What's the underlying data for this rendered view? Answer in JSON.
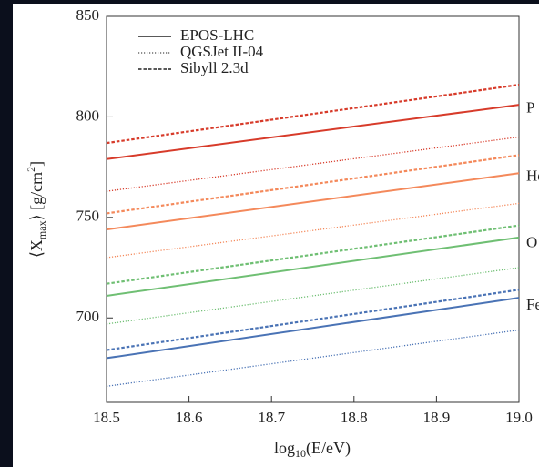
{
  "chart_data": {
    "type": "line",
    "xlabel": {
      "main": "log",
      "sub": "10",
      "rest": "(E/eV)"
    },
    "ylabel": {
      "main": "⟨X",
      "sub": "max",
      "rest": "⟩ [g/cm",
      "sup": "2",
      "end": "]"
    },
    "x": [
      18.5,
      19.0
    ],
    "xlim": [
      18.5,
      19.0
    ],
    "xticks": [
      18.5,
      18.6,
      18.7,
      18.8,
      18.9,
      {
        "value": 19.0,
        "label": "19.0"
      }
    ],
    "ylim": [
      658,
      850
    ],
    "yticks": [
      700,
      750,
      800,
      850
    ],
    "legend": [
      {
        "label": "EPOS-LHC",
        "style": "solid"
      },
      {
        "label": "QGSJet II-04",
        "style": "dotted"
      },
      {
        "label": "Sibyll 2.3d",
        "style": "dashed"
      }
    ],
    "groups": [
      {
        "label": "P",
        "color": "#d73b2a",
        "series": [
          {
            "style": "solid",
            "values": [
              779,
              806
            ]
          },
          {
            "style": "dotted",
            "values": [
              763,
              790
            ]
          },
          {
            "style": "dashed",
            "values": [
              787,
              816
            ]
          }
        ]
      },
      {
        "label": "He",
        "color": "#f4895b",
        "series": [
          {
            "style": "solid",
            "values": [
              744,
              772
            ]
          },
          {
            "style": "dotted",
            "values": [
              730,
              757
            ]
          },
          {
            "style": "dashed",
            "values": [
              752,
              781
            ]
          }
        ]
      },
      {
        "label": "O",
        "color": "#6fbf73",
        "series": [
          {
            "style": "solid",
            "values": [
              711,
              740
            ]
          },
          {
            "style": "dotted",
            "values": [
              697,
              725
            ]
          },
          {
            "style": "dashed",
            "values": [
              717,
              746
            ]
          }
        ]
      },
      {
        "label": "Fe",
        "color": "#4a73b5",
        "series": [
          {
            "style": "solid",
            "values": [
              680,
              710
            ]
          },
          {
            "style": "dotted",
            "values": [
              666,
              694
            ]
          },
          {
            "style": "dashed",
            "values": [
              684,
              714
            ]
          }
        ]
      }
    ]
  }
}
